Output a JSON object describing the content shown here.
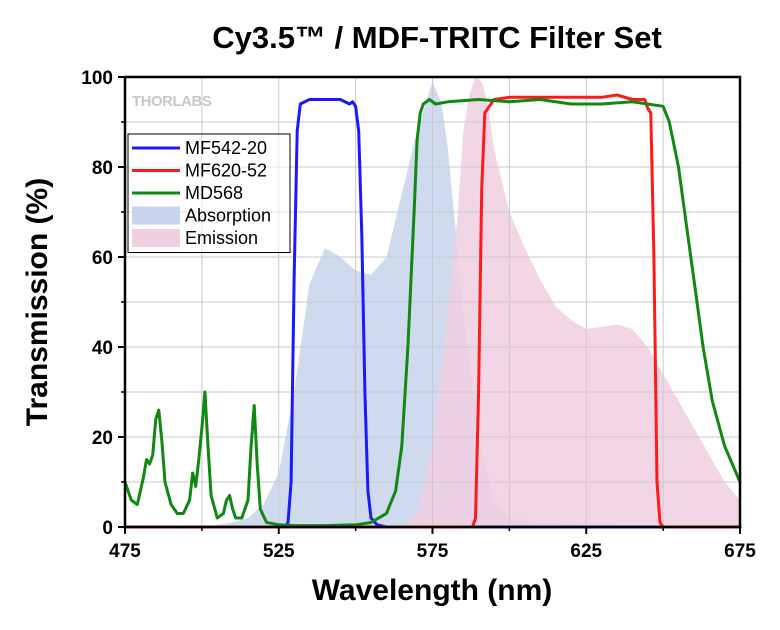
{
  "chart_data": {
    "type": "line",
    "title": "Cy3.5™ / MDF-TRITC Filter Set",
    "xlabel": "Wavelength (nm)",
    "ylabel": "Transmission (%)",
    "xlim": [
      475,
      675
    ],
    "ylim": [
      0,
      100
    ],
    "xticks": [
      475,
      525,
      575,
      625,
      675
    ],
    "yticks": [
      0,
      20,
      40,
      60,
      80,
      100
    ],
    "grid": true,
    "legend_position": "top-left",
    "watermark": "THORLABS",
    "series": [
      {
        "name": "MF542-20",
        "kind": "line",
        "color": "#1a1aff",
        "x": [
          475,
          527,
          528,
          529,
          530,
          531,
          532,
          535,
          540,
          545,
          548,
          549,
          550,
          551,
          552,
          553,
          554,
          555,
          557,
          560,
          675
        ],
        "y": [
          0,
          0,
          1,
          10,
          55,
          88,
          94,
          95,
          95,
          95,
          94,
          94.5,
          93.5,
          88,
          65,
          30,
          8,
          2,
          0.5,
          0,
          0
        ]
      },
      {
        "name": "MF620-52",
        "kind": "line",
        "color": "#ff1a1a",
        "x": [
          475,
          588,
          589,
          590,
          591,
          592,
          595,
          600,
          610,
          620,
          630,
          635,
          640,
          644,
          645,
          646,
          647,
          648,
          649,
          650,
          675
        ],
        "y": [
          0,
          0,
          2,
          30,
          75,
          92,
          95,
          95.5,
          95.5,
          95.5,
          95.5,
          96,
          95,
          95,
          93,
          92,
          60,
          10,
          1,
          0,
          0
        ]
      },
      {
        "name": "MD568",
        "kind": "line",
        "color": "#118811",
        "x": [
          475,
          477,
          479,
          481,
          482,
          483,
          484,
          485,
          486,
          487,
          488,
          490,
          492,
          494,
          496,
          497,
          498,
          499,
          500,
          501,
          502,
          503,
          505,
          507,
          508,
          509,
          510,
          511,
          513,
          515,
          516,
          517,
          518,
          519,
          521,
          525,
          530,
          540,
          550,
          555,
          560,
          563,
          565,
          567,
          569,
          570,
          571,
          572,
          574,
          576,
          580,
          590,
          600,
          610,
          620,
          630,
          640,
          645,
          650,
          652,
          655,
          658,
          660,
          663,
          666,
          670,
          675
        ],
        "y": [
          10,
          6,
          5,
          11,
          15,
          14,
          16,
          24,
          26,
          19,
          10,
          5,
          3,
          3,
          6,
          12,
          9,
          15,
          22,
          30,
          18,
          7,
          2,
          3,
          6,
          7,
          4,
          2,
          2,
          6,
          18,
          27,
          14,
          4,
          1,
          0.5,
          0.3,
          0.3,
          0.5,
          1,
          3,
          8,
          18,
          40,
          70,
          86,
          92,
          94,
          95,
          94,
          94.5,
          95,
          94.5,
          95,
          94,
          94,
          94.5,
          94,
          93.5,
          90,
          80,
          65,
          55,
          40,
          28,
          18,
          10
        ]
      },
      {
        "name": "Absorption",
        "kind": "area",
        "color": "#c8d3ec",
        "x": [
          475,
          500,
          510,
          515,
          520,
          525,
          530,
          535,
          540,
          545,
          550,
          555,
          560,
          565,
          570,
          575,
          578,
          580,
          585,
          590,
          595,
          600,
          610,
          620,
          675
        ],
        "y": [
          0,
          0,
          1,
          2,
          5,
          12,
          30,
          54,
          62,
          60,
          57,
          56,
          60,
          74,
          88,
          99,
          94,
          84,
          48,
          20,
          6,
          2,
          1,
          0.5,
          0
        ]
      },
      {
        "name": "Emission",
        "kind": "area",
        "color": "#f0cfe0",
        "x": [
          475,
          565,
          570,
          575,
          580,
          583,
          585,
          587,
          589,
          591,
          593,
          595,
          600,
          605,
          610,
          615,
          620,
          625,
          630,
          635,
          640,
          645,
          650,
          655,
          660,
          665,
          670,
          675
        ],
        "y": [
          0,
          0,
          3,
          18,
          48,
          68,
          88,
          96,
          100,
          99,
          94,
          84,
          70,
          62,
          55,
          49,
          46,
          44,
          44.5,
          45,
          44,
          40,
          34,
          28,
          22,
          16,
          10,
          6
        ]
      }
    ]
  }
}
